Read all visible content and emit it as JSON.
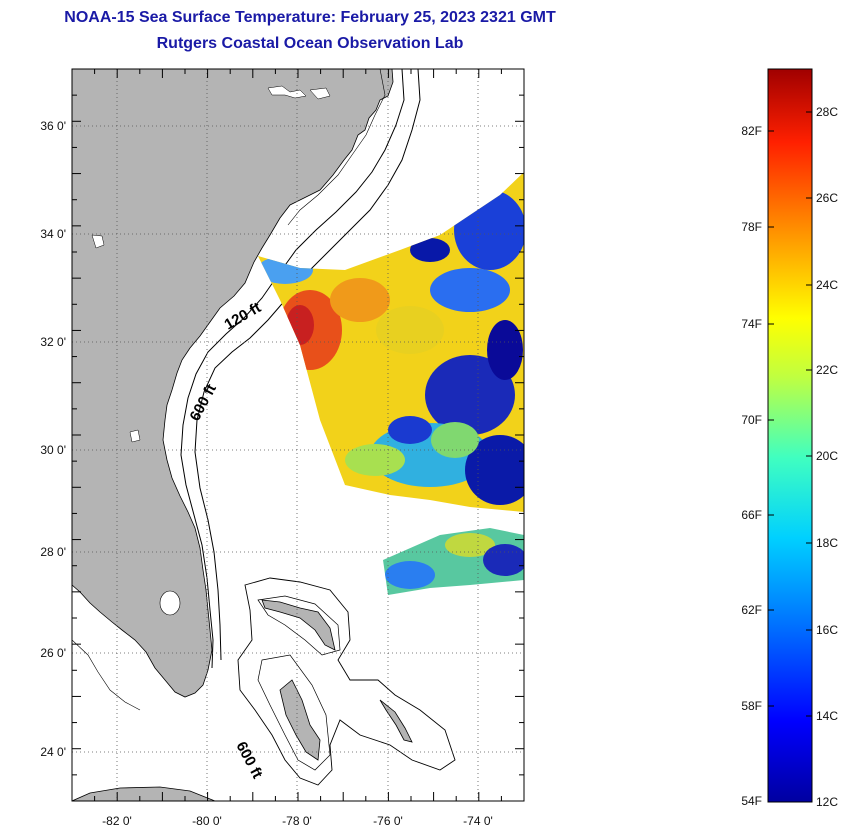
{
  "title": {
    "line1": "NOAA-15 Sea Surface Temperature:  February 25, 2023 2321 GMT",
    "line2": "Rutgers Coastal Ocean Observation Lab"
  },
  "map": {
    "lon_range": [
      -83,
      -73
    ],
    "lat_range": [
      23,
      37
    ],
    "lon_ticks": [
      "-82 0'",
      "-80 0'",
      "-78 0'",
      "-76 0'",
      "-74 0'"
    ],
    "lat_ticks": [
      "36 0'",
      "34 0'",
      "32 0'",
      "30 0'",
      "28 0'",
      "26 0'",
      "24 0'"
    ],
    "land_color": "#b4b4b4",
    "ocean_color": "#ffffff",
    "grid": "dotted",
    "contour_labels": [
      "120 ft",
      "600 ft",
      "600 ft"
    ]
  },
  "colorbar": {
    "fahrenheit_labels": [
      "82F",
      "78F",
      "74F",
      "70F",
      "66F",
      "62F",
      "58F",
      "54F"
    ],
    "celsius_labels": [
      "28C",
      "26C",
      "24C",
      "22C",
      "20C",
      "18C",
      "16C",
      "14C",
      "12C"
    ],
    "range_celsius": [
      12,
      29
    ],
    "colors": [
      "#0000a0",
      "#0000ff",
      "#0070ff",
      "#00d0ff",
      "#40ffc0",
      "#c0ff40",
      "#ffff00",
      "#ff9000",
      "#ff2000",
      "#a00000"
    ]
  }
}
